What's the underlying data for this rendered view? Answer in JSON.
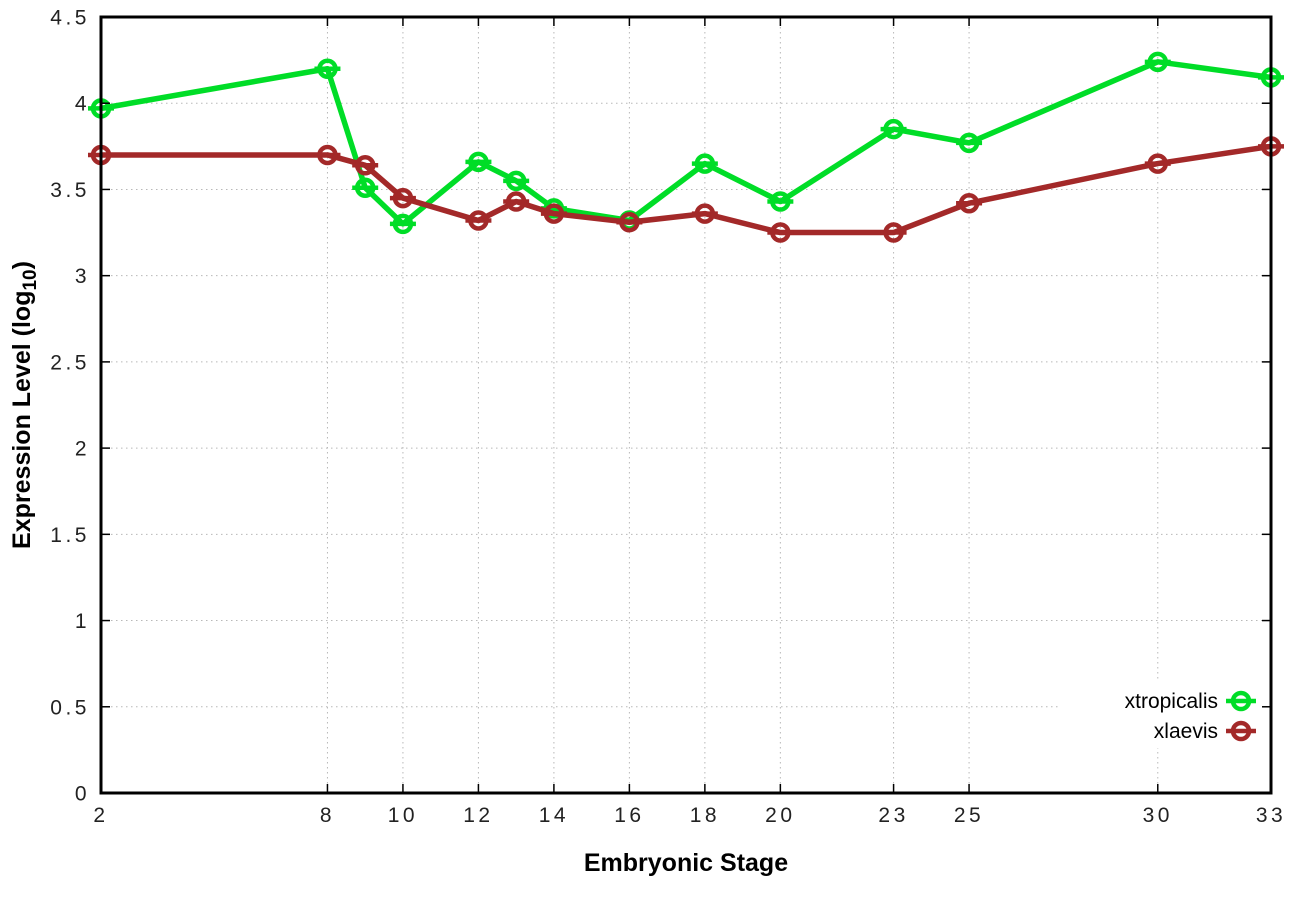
{
  "chart_data": {
    "type": "line",
    "title": "",
    "xlabel": "Embryonic Stage",
    "ylabel": "Expression Level (log10)",
    "ylabel_parts": {
      "prefix": "Expression Level (log",
      "subscript": "10",
      "suffix": ")"
    },
    "x": [
      2,
      8,
      9,
      10,
      12,
      13,
      14,
      16,
      18,
      20,
      23,
      25,
      30,
      33
    ],
    "series": [
      {
        "name": "xtropicalis",
        "color": "#00dd27",
        "values": [
          3.97,
          4.2,
          3.51,
          3.3,
          3.66,
          3.55,
          3.39,
          3.32,
          3.65,
          3.43,
          3.85,
          3.77,
          4.24,
          4.15
        ]
      },
      {
        "name": "xlaevis",
        "color": "#a32929",
        "values": [
          3.7,
          3.7,
          3.64,
          3.45,
          3.32,
          3.43,
          3.36,
          3.31,
          3.36,
          3.25,
          3.25,
          3.42,
          3.65,
          3.75
        ]
      }
    ],
    "xlim": [
      2,
      33
    ],
    "ylim": [
      0,
      4.5
    ],
    "xticks": [
      2,
      8,
      10,
      12,
      14,
      16,
      18,
      20,
      23,
      25,
      30,
      33
    ],
    "yticks": [
      0,
      0.5,
      1,
      1.5,
      2,
      2.5,
      3,
      3.5,
      4,
      4.5
    ],
    "ytick_labels": [
      "0",
      "0.5",
      "1",
      "1.5",
      "2",
      "2.5",
      "3",
      "3.5",
      "4",
      "4.5"
    ],
    "grid": true,
    "legend_position": "bottom-right",
    "legend_entries": [
      "xtropicalis",
      "xlaevis"
    ]
  },
  "style": {
    "background_color": "#ffffff",
    "grid_color": "#b8b8b8",
    "axis_color": "#000000",
    "tick_text_color": "#222222",
    "marker_style": "open-circle-with-horizontal-bar"
  }
}
